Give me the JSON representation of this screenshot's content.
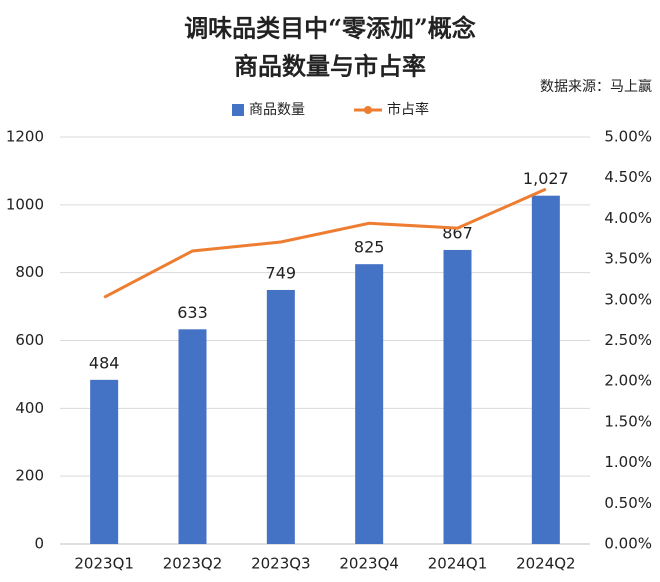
{
  "chart_data": {
    "type": "bar",
    "title": [
      "调味品类目中“零添加”概念",
      "商品数量与市占率"
    ],
    "source": "数据来源：马上赢",
    "categories": [
      "2023Q1",
      "2023Q2",
      "2023Q3",
      "2023Q4",
      "2024Q1",
      "2024Q2"
    ],
    "series": [
      {
        "name": "商品数量",
        "type": "bar",
        "color": "#4472c4",
        "values": [
          484,
          633,
          749,
          825,
          867,
          1027
        ],
        "value_labels": [
          "484",
          "633",
          "749",
          "825",
          "867",
          "1,027"
        ]
      },
      {
        "name": "市占率",
        "type": "line",
        "axis": "y2",
        "color": "#ed7d31",
        "values": [
          3.03,
          3.6,
          3.71,
          3.94,
          3.88,
          4.36
        ]
      }
    ],
    "ylim": [
      0,
      1200
    ],
    "yticks": [
      0,
      200,
      400,
      600,
      800,
      1000,
      1200
    ],
    "y2lim": [
      0,
      5
    ],
    "y2ticks": [
      {
        "value": 0,
        "label": "0.00%"
      },
      {
        "value": 0.5,
        "label": "0.50%"
      },
      {
        "value": 1,
        "label": "1.00%"
      },
      {
        "value": 1.5,
        "label": "1.50%"
      },
      {
        "value": 2,
        "label": "2.00%"
      },
      {
        "value": 2.5,
        "label": "2.50%"
      },
      {
        "value": 3,
        "label": "3.00%"
      },
      {
        "value": 3.5,
        "label": "3.50%"
      },
      {
        "value": 4,
        "label": "4.00%"
      },
      {
        "value": 4.5,
        "label": "4.50%"
      },
      {
        "value": 5,
        "label": "5.00%"
      }
    ],
    "grid": true,
    "legend": "top"
  }
}
